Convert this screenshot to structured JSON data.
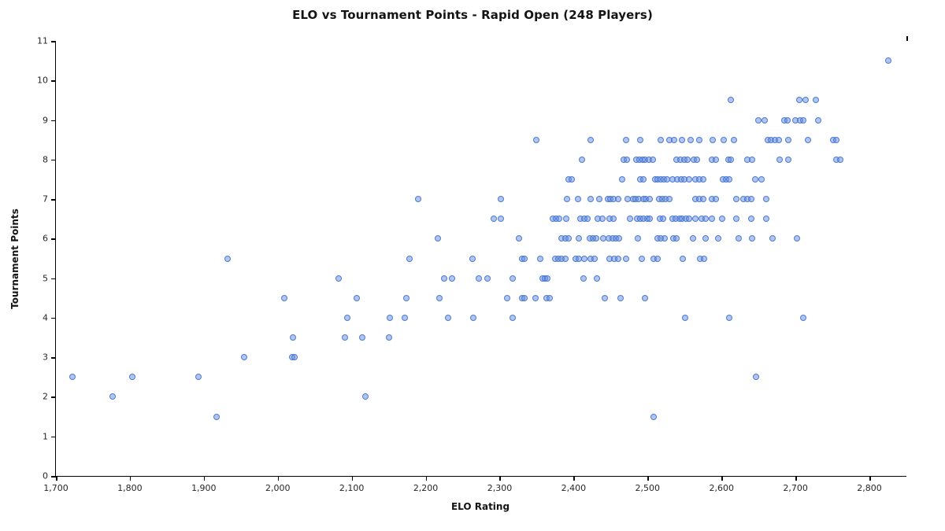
{
  "chart_data": {
    "type": "scatter",
    "title": "ELO vs Tournament Points - Rapid Open (248 Players)",
    "xlabel": "ELO Rating",
    "ylabel": "Tournament Points",
    "xlim": [
      1700,
      2850
    ],
    "ylim": [
      0,
      11
    ],
    "grid": false,
    "legend": "none",
    "x_ticks": [
      1700,
      1800,
      1900,
      2000,
      2100,
      2200,
      2300,
      2400,
      2500,
      2600,
      2700,
      2800
    ],
    "x_tick_labels": [
      "1,700",
      "1,800",
      "1,900",
      "2,000",
      "2,100",
      "2,200",
      "2,300",
      "2,400",
      "2,500",
      "2,600",
      "2,700",
      "2,800"
    ],
    "x_end_tick": 2850,
    "y_ticks": [
      0,
      1,
      2,
      3,
      4,
      5,
      6,
      7,
      8,
      9,
      10,
      11
    ],
    "y_tick_labels": [
      "0",
      "1",
      "2",
      "3",
      "4",
      "5",
      "6",
      "7",
      "8",
      "9",
      "10",
      "11"
    ],
    "marker": {
      "radius": 4,
      "fill": "rgba(100,140,220,0.5)",
      "stroke": "rgba(60,110,210,0.85)",
      "stroke_width": 1.5
    },
    "points": [
      [
        1917,
        1.5
      ],
      [
        2508,
        1.5
      ],
      [
        1777,
        2
      ],
      [
        2118,
        2
      ],
      [
        1722,
        2.5
      ],
      [
        1803,
        2.5
      ],
      [
        1893,
        2.5
      ],
      [
        2647,
        2.5
      ],
      [
        1954,
        3
      ],
      [
        2019,
        3
      ],
      [
        2023,
        3
      ],
      [
        2020,
        3.5
      ],
      [
        2091,
        3.5
      ],
      [
        2114,
        3.5
      ],
      [
        2150,
        3.5
      ],
      [
        2094,
        4
      ],
      [
        2152,
        4
      ],
      [
        2172,
        4
      ],
      [
        2230,
        4
      ],
      [
        2264,
        4
      ],
      [
        2318,
        4
      ],
      [
        2551,
        4
      ],
      [
        2610,
        4
      ],
      [
        2711,
        4
      ],
      [
        2009,
        4.5
      ],
      [
        2107,
        4.5
      ],
      [
        2174,
        4.5
      ],
      [
        2219,
        4.5
      ],
      [
        2310,
        4.5
      ],
      [
        2330,
        4.5
      ],
      [
        2334,
        4.5
      ],
      [
        2349,
        4.5
      ],
      [
        2363,
        4.5
      ],
      [
        2368,
        4.5
      ],
      [
        2442,
        4.5
      ],
      [
        2463,
        4.5
      ],
      [
        2496,
        4.5
      ],
      [
        2082,
        5
      ],
      [
        2225,
        5
      ],
      [
        2236,
        5
      ],
      [
        2272,
        5
      ],
      [
        2283,
        5
      ],
      [
        2318,
        5
      ],
      [
        2358,
        5
      ],
      [
        2361,
        5
      ],
      [
        2364,
        5
      ],
      [
        2413,
        5
      ],
      [
        2432,
        5
      ],
      [
        1932,
        5.5
      ],
      [
        2178,
        5.5
      ],
      [
        2263,
        5.5
      ],
      [
        2330,
        5.5
      ],
      [
        2334,
        5.5
      ],
      [
        2355,
        5.5
      ],
      [
        2375,
        5.5
      ],
      [
        2379,
        5.5
      ],
      [
        2384,
        5.5
      ],
      [
        2389,
        5.5
      ],
      [
        2403,
        5.5
      ],
      [
        2407,
        5.5
      ],
      [
        2415,
        5.5
      ],
      [
        2423,
        5.5
      ],
      [
        2428,
        5.5
      ],
      [
        2449,
        5.5
      ],
      [
        2455,
        5.5
      ],
      [
        2460,
        5.5
      ],
      [
        2471,
        5.5
      ],
      [
        2492,
        5.5
      ],
      [
        2508,
        5.5
      ],
      [
        2514,
        5.5
      ],
      [
        2548,
        5.5
      ],
      [
        2571,
        5.5
      ],
      [
        2576,
        5.5
      ],
      [
        2216,
        6
      ],
      [
        2326,
        6
      ],
      [
        2384,
        6
      ],
      [
        2389,
        6
      ],
      [
        2393,
        6
      ],
      [
        2407,
        6
      ],
      [
        2422,
        6
      ],
      [
        2426,
        6
      ],
      [
        2430,
        6
      ],
      [
        2440,
        6
      ],
      [
        2448,
        6
      ],
      [
        2453,
        6
      ],
      [
        2457,
        6
      ],
      [
        2461,
        6
      ],
      [
        2487,
        6
      ],
      [
        2514,
        6
      ],
      [
        2518,
        6
      ],
      [
        2523,
        6
      ],
      [
        2535,
        6
      ],
      [
        2539,
        6
      ],
      [
        2561,
        6
      ],
      [
        2579,
        6
      ],
      [
        2596,
        6
      ],
      [
        2623,
        6
      ],
      [
        2641,
        6
      ],
      [
        2669,
        6
      ],
      [
        2702,
        6
      ],
      [
        2292,
        6.5
      ],
      [
        2302,
        6.5
      ],
      [
        2372,
        6.5
      ],
      [
        2376,
        6.5
      ],
      [
        2380,
        6.5
      ],
      [
        2390,
        6.5
      ],
      [
        2409,
        6.5
      ],
      [
        2415,
        6.5
      ],
      [
        2419,
        6.5
      ],
      [
        2433,
        6.5
      ],
      [
        2439,
        6.5
      ],
      [
        2449,
        6.5
      ],
      [
        2454,
        6.5
      ],
      [
        2476,
        6.5
      ],
      [
        2486,
        6.5
      ],
      [
        2490,
        6.5
      ],
      [
        2494,
        6.5
      ],
      [
        2500,
        6.5
      ],
      [
        2503,
        6.5
      ],
      [
        2517,
        6.5
      ],
      [
        2521,
        6.5
      ],
      [
        2534,
        6.5
      ],
      [
        2538,
        6.5
      ],
      [
        2543,
        6.5
      ],
      [
        2547,
        6.5
      ],
      [
        2552,
        6.5
      ],
      [
        2556,
        6.5
      ],
      [
        2565,
        6.5
      ],
      [
        2573,
        6.5
      ],
      [
        2578,
        6.5
      ],
      [
        2587,
        6.5
      ],
      [
        2601,
        6.5
      ],
      [
        2620,
        6.5
      ],
      [
        2640,
        6.5
      ],
      [
        2660,
        6.5
      ],
      [
        2190,
        7
      ],
      [
        2302,
        7
      ],
      [
        2391,
        7
      ],
      [
        2406,
        7
      ],
      [
        2423,
        7
      ],
      [
        2435,
        7
      ],
      [
        2446,
        7
      ],
      [
        2450,
        7
      ],
      [
        2454,
        7
      ],
      [
        2460,
        7
      ],
      [
        2473,
        7
      ],
      [
        2480,
        7
      ],
      [
        2484,
        7
      ],
      [
        2488,
        7
      ],
      [
        2494,
        7
      ],
      [
        2498,
        7
      ],
      [
        2503,
        7
      ],
      [
        2516,
        7
      ],
      [
        2520,
        7
      ],
      [
        2524,
        7
      ],
      [
        2529,
        7
      ],
      [
        2565,
        7
      ],
      [
        2570,
        7
      ],
      [
        2575,
        7
      ],
      [
        2587,
        7
      ],
      [
        2592,
        7
      ],
      [
        2620,
        7
      ],
      [
        2630,
        7
      ],
      [
        2635,
        7
      ],
      [
        2640,
        7
      ],
      [
        2660,
        7
      ],
      [
        2393,
        7.5
      ],
      [
        2397,
        7.5
      ],
      [
        2466,
        7.5
      ],
      [
        2490,
        7.5
      ],
      [
        2494,
        7.5
      ],
      [
        2510,
        7.5
      ],
      [
        2514,
        7.5
      ],
      [
        2518,
        7.5
      ],
      [
        2522,
        7.5
      ],
      [
        2526,
        7.5
      ],
      [
        2534,
        7.5
      ],
      [
        2540,
        7.5
      ],
      [
        2545,
        7.5
      ],
      [
        2550,
        7.5
      ],
      [
        2556,
        7.5
      ],
      [
        2565,
        7.5
      ],
      [
        2570,
        7.5
      ],
      [
        2575,
        7.5
      ],
      [
        2602,
        7.5
      ],
      [
        2606,
        7.5
      ],
      [
        2610,
        7.5
      ],
      [
        2646,
        7.5
      ],
      [
        2654,
        7.5
      ],
      [
        2411,
        8
      ],
      [
        2468,
        8
      ],
      [
        2472,
        8
      ],
      [
        2485,
        8
      ],
      [
        2489,
        8
      ],
      [
        2493,
        8
      ],
      [
        2497,
        8
      ],
      [
        2502,
        8
      ],
      [
        2507,
        8
      ],
      [
        2539,
        8
      ],
      [
        2544,
        8
      ],
      [
        2550,
        8
      ],
      [
        2554,
        8
      ],
      [
        2563,
        8
      ],
      [
        2567,
        8
      ],
      [
        2587,
        8
      ],
      [
        2592,
        8
      ],
      [
        2609,
        8
      ],
      [
        2613,
        8
      ],
      [
        2635,
        8
      ],
      [
        2641,
        8
      ],
      [
        2679,
        8
      ],
      [
        2690,
        8
      ],
      [
        2755,
        8
      ],
      [
        2761,
        8
      ],
      [
        2350,
        8.5
      ],
      [
        2423,
        8.5
      ],
      [
        2471,
        8.5
      ],
      [
        2490,
        8.5
      ],
      [
        2518,
        8.5
      ],
      [
        2530,
        8.5
      ],
      [
        2536,
        8.5
      ],
      [
        2547,
        8.5
      ],
      [
        2558,
        8.5
      ],
      [
        2570,
        8.5
      ],
      [
        2588,
        8.5
      ],
      [
        2603,
        8.5
      ],
      [
        2617,
        8.5
      ],
      [
        2663,
        8.5
      ],
      [
        2667,
        8.5
      ],
      [
        2672,
        8.5
      ],
      [
        2677,
        8.5
      ],
      [
        2690,
        8.5
      ],
      [
        2717,
        8.5
      ],
      [
        2751,
        8.5
      ],
      [
        2755,
        8.5
      ],
      [
        2650,
        9
      ],
      [
        2658,
        9
      ],
      [
        2685,
        9
      ],
      [
        2689,
        9
      ],
      [
        2700,
        9
      ],
      [
        2706,
        9
      ],
      [
        2710,
        9
      ],
      [
        2731,
        9
      ],
      [
        2613,
        9.5
      ],
      [
        2705,
        9.5
      ],
      [
        2714,
        9.5
      ],
      [
        2728,
        9.5
      ],
      [
        2825,
        10.5
      ]
    ]
  }
}
